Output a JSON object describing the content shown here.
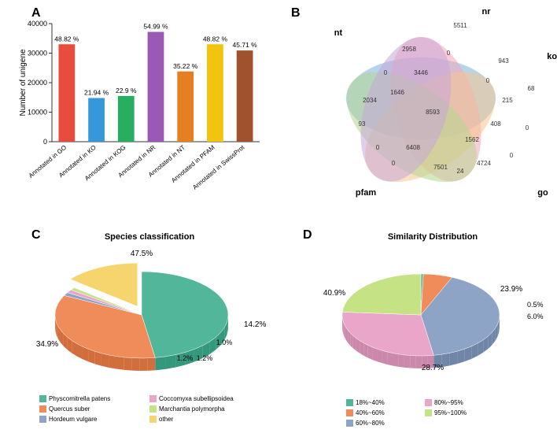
{
  "panel_a": {
    "label": "A",
    "type": "bar",
    "ylabel": "Number of unigene",
    "ylim": [
      0,
      40000
    ],
    "ytick_step": 10000,
    "categories": [
      "Annotated in GO",
      "Annotated in KO",
      "Annotated in KOG",
      "Annotated in NR",
      "Annotated in NT",
      "Annotated in PFAM",
      "Annotated in SwissProt"
    ],
    "values": [
      33000,
      14800,
      15500,
      37200,
      23800,
      33000,
      30900
    ],
    "value_labels": [
      "48.82 %",
      "21.94 %",
      "22.9 %",
      "54.99 %",
      "35.22 %",
      "48.82 %",
      "45.71 %"
    ],
    "bar_colors": [
      "#e74c3c",
      "#3498db",
      "#27ae60",
      "#9b59b6",
      "#e67e22",
      "#f1c40f",
      "#a0522d"
    ],
    "bar_width": 0.55
  },
  "panel_b": {
    "label": "B",
    "type": "venn5",
    "set_labels": [
      "nt",
      "nr",
      "kog",
      "go",
      "pfam"
    ],
    "set_colors": [
      "#7bb3d9",
      "#f5a5b8",
      "#f5c58e",
      "#b5d68f",
      "#c9a5d9"
    ],
    "region_values": {
      "nt_only": "2034",
      "nr_only": "5511",
      "kog_only": "68",
      "go_only": "0",
      "pfam_only": "0",
      "nt_nr": "2958",
      "nr_kog": "943",
      "kog_go": "0",
      "go_pfam": "0",
      "pfam_nt": "93",
      "nt_nr_kog": "0",
      "nr_kog_go": "215",
      "kog_go_pfam": "0",
      "go_pfam_nt": "0",
      "pfam_nt_nr": "1646",
      "nt_nr_go": "3446",
      "nr_kog_pfam": "408",
      "kog_go_nt": "0",
      "go_pfam_nr": "1562",
      "pfam_nt_kog": "0",
      "center": "8593",
      "nt_nr_kog_go": "0",
      "nr_kog_go_pfam": "0",
      "kog_go_pfam_nt": "0",
      "go_pfam_nt_nr": "6408",
      "pfam_nt_nr_kog": "0",
      "extra1": "7501",
      "extra2": "24",
      "extra3": "4724"
    }
  },
  "panel_c": {
    "label": "C",
    "title": "Species classification",
    "type": "pie3d",
    "slices": [
      {
        "label": "Physcomitrella patens",
        "value": 47.5,
        "color": "#52b69a",
        "text": "47.5%"
      },
      {
        "label": "Quercus suber",
        "value": 34.9,
        "color": "#f08c5a",
        "text": "34.9%"
      },
      {
        "label": "Hordeum vulgare",
        "value": 1.2,
        "color": "#8da4c7",
        "text": "1.2%"
      },
      {
        "label": "Coccomyxa subellipsoidea",
        "value": 1.2,
        "color": "#e9a6c9",
        "text": "1.2%"
      },
      {
        "label": "Marchantia polymorpha",
        "value": 1.0,
        "color": "#c5e384",
        "text": "1.0%"
      },
      {
        "label": "other",
        "value": 14.2,
        "color": "#f7d56e",
        "text": "14.2%"
      }
    ],
    "display_labels": [
      "47.5%",
      "34.9%",
      "1.2%",
      "1.2%",
      "1.0%",
      "14.2%"
    ]
  },
  "panel_d": {
    "label": "D",
    "title": "Similarity Distribution",
    "type": "pie3d",
    "slices": [
      {
        "label": "18%~40%",
        "value": 0.5,
        "color": "#52b69a"
      },
      {
        "label": "40%~60%",
        "value": 6.0,
        "color": "#f08c5a"
      },
      {
        "label": "60%~80%",
        "value": 40.9,
        "color": "#8da4c7"
      },
      {
        "label": "80%~95%",
        "value": 28.7,
        "color": "#e9a6c9"
      },
      {
        "label": "95%~100%",
        "value": 23.9,
        "color": "#c5e384"
      }
    ],
    "display_labels": [
      "40.9%",
      "28.7%",
      "23.9%",
      "0.5%",
      "6.0%"
    ]
  },
  "legend_c_extra": [
    "Physcomitrella patens",
    "Quercus suber",
    "Hordeum vulgare",
    "Coccomyxa subellipsoidea",
    "Marchantia polymorpha",
    "other"
  ],
  "legend_d_extra": [
    "18%~40%",
    "40%~60%",
    "60%~80%",
    "80%~95%",
    "95%~100%"
  ]
}
